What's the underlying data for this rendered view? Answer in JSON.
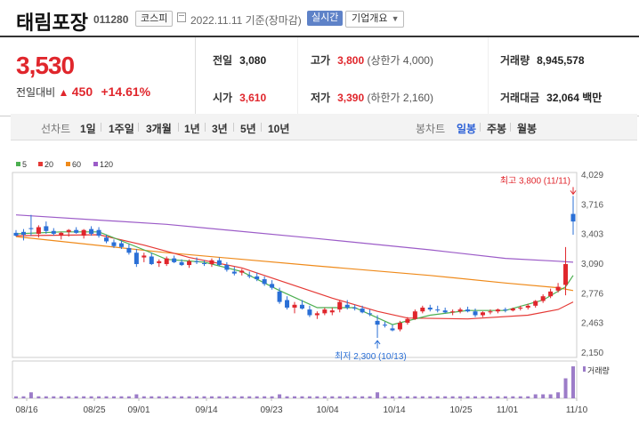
{
  "header": {
    "name": "태림포장",
    "code": "011280",
    "market": "코스피",
    "date": "2022.11.11 기준(장마감)",
    "live": "실시간",
    "company": "기업개요"
  },
  "price": {
    "current": "3,530",
    "change_label": "전일대비",
    "change_icon": "▲",
    "change": "450",
    "change_pct": "+14.61%"
  },
  "stats": {
    "prev": {
      "label": "전일",
      "value": "3,080"
    },
    "high": {
      "label": "고가",
      "value": "3,800",
      "sub": "(상한가 4,000)"
    },
    "volume": {
      "label": "거래량",
      "value": "8,945,578"
    },
    "open": {
      "label": "시가",
      "value": "3,610"
    },
    "low": {
      "label": "저가",
      "value": "3,390",
      "sub": "(하한가 2,160)"
    },
    "amount": {
      "label": "거래대금",
      "value": "32,064",
      "unit": "백만"
    }
  },
  "period": {
    "line_label": "선차트",
    "line_items": [
      "1일",
      "1주일",
      "3개월",
      "1년",
      "3년",
      "5년",
      "10년"
    ],
    "candle_label": "봉차트",
    "candle_items": [
      "일봉",
      "주봉",
      "월봉"
    ],
    "active_candle": "일봉"
  },
  "chart_data": {
    "type": "candlestick",
    "legend": [
      {
        "name": "5",
        "color": "#4caf50"
      },
      {
        "name": "20",
        "color": "#e53935"
      },
      {
        "name": "60",
        "color": "#ef8a1a"
      },
      {
        "name": "120",
        "color": "#9c5cc8"
      }
    ],
    "y_ticks": [
      4029,
      3716,
      3403,
      3090,
      2776,
      2463,
      2150
    ],
    "ylim": [
      2150,
      4029
    ],
    "x_labels": [
      "08/16",
      "08/25",
      "09/01",
      "09/14",
      "09/23",
      "10/04",
      "10/14",
      "10/25",
      "11/01",
      "11/10"
    ],
    "high_annotation": "최고 3,800 (11/11)",
    "low_annotation": "최저 2,300 (10/13)",
    "volume_label": "거래량",
    "candles": [
      [
        3410,
        3440,
        3370,
        3380
      ],
      [
        3420,
        3450,
        3330,
        3390
      ],
      [
        3460,
        3600,
        3380,
        3450
      ],
      [
        3400,
        3490,
        3360,
        3470
      ],
      [
        3480,
        3530,
        3400,
        3430
      ],
      [
        3430,
        3460,
        3380,
        3400
      ],
      [
        3380,
        3420,
        3340,
        3410
      ],
      [
        3420,
        3450,
        3370,
        3440
      ],
      [
        3440,
        3470,
        3400,
        3410
      ],
      [
        3380,
        3450,
        3350,
        3440
      ],
      [
        3450,
        3480,
        3380,
        3400
      ],
      [
        3440,
        3470,
        3360,
        3380
      ],
      [
        3360,
        3390,
        3300,
        3320
      ],
      [
        3310,
        3340,
        3250,
        3270
      ],
      [
        3300,
        3330,
        3240,
        3260
      ],
      [
        3250,
        3290,
        3180,
        3200
      ],
      [
        3200,
        3240,
        3050,
        3080
      ],
      [
        3150,
        3200,
        3100,
        3170
      ],
      [
        3160,
        3200,
        3070,
        3080
      ],
      [
        3090,
        3130,
        3050,
        3110
      ],
      [
        3080,
        3160,
        3060,
        3140
      ],
      [
        3140,
        3170,
        3090,
        3100
      ],
      [
        3100,
        3130,
        3060,
        3070
      ],
      [
        3070,
        3130,
        3040,
        3110
      ],
      [
        3110,
        3150,
        3080,
        3100
      ],
      [
        3090,
        3120,
        3060,
        3080
      ],
      [
        3080,
        3140,
        3050,
        3120
      ],
      [
        3120,
        3150,
        3060,
        3070
      ],
      [
        3070,
        3100,
        3000,
        3020
      ],
      [
        3000,
        3050,
        2960,
        2980
      ],
      [
        2990,
        3030,
        2960,
        3010
      ],
      [
        2960,
        3000,
        2930,
        2950
      ],
      [
        2950,
        2990,
        2900,
        2920
      ],
      [
        2920,
        2950,
        2850,
        2870
      ],
      [
        2870,
        2910,
        2810,
        2830
      ],
      [
        2790,
        2830,
        2660,
        2680
      ],
      [
        2700,
        2740,
        2600,
        2620
      ],
      [
        2620,
        2680,
        2560,
        2650
      ],
      [
        2650,
        2700,
        2600,
        2610
      ],
      [
        2600,
        2640,
        2520,
        2540
      ],
      [
        2540,
        2580,
        2500,
        2560
      ],
      [
        2560,
        2620,
        2540,
        2600
      ],
      [
        2570,
        2620,
        2540,
        2590
      ],
      [
        2600,
        2700,
        2570,
        2680
      ],
      [
        2650,
        2700,
        2600,
        2620
      ],
      [
        2620,
        2650,
        2590,
        2610
      ],
      [
        2610,
        2640,
        2560,
        2570
      ],
      [
        2560,
        2600,
        2530,
        2550
      ],
      [
        2480,
        2540,
        2300,
        2440
      ],
      [
        2440,
        2470,
        2410,
        2430
      ],
      [
        2400,
        2440,
        2370,
        2380
      ],
      [
        2390,
        2480,
        2370,
        2460
      ],
      [
        2460,
        2520,
        2440,
        2500
      ],
      [
        2500,
        2600,
        2490,
        2580
      ],
      [
        2580,
        2640,
        2560,
        2620
      ],
      [
        2620,
        2650,
        2580,
        2600
      ],
      [
        2600,
        2640,
        2570,
        2590
      ],
      [
        2590,
        2620,
        2560,
        2570
      ],
      [
        2570,
        2600,
        2540,
        2580
      ],
      [
        2580,
        2620,
        2560,
        2600
      ],
      [
        2600,
        2630,
        2570,
        2580
      ],
      [
        2580,
        2610,
        2520,
        2540
      ],
      [
        2540,
        2580,
        2520,
        2570
      ],
      [
        2570,
        2600,
        2550,
        2580
      ],
      [
        2580,
        2610,
        2560,
        2600
      ],
      [
        2600,
        2620,
        2570,
        2590
      ],
      [
        2590,
        2620,
        2580,
        2610
      ],
      [
        2610,
        2640,
        2590,
        2620
      ],
      [
        2620,
        2660,
        2600,
        2640
      ],
      [
        2640,
        2700,
        2620,
        2690
      ],
      [
        2690,
        2760,
        2670,
        2740
      ],
      [
        2740,
        2820,
        2720,
        2790
      ],
      [
        2800,
        2880,
        2780,
        2840
      ],
      [
        2860,
        3260,
        2750,
        3080
      ],
      [
        3610,
        3800,
        3390,
        3530
      ]
    ],
    "ma5": [
      [
        0,
        3400
      ],
      [
        6,
        3420
      ],
      [
        11,
        3420
      ],
      [
        17,
        3230
      ],
      [
        20,
        3130
      ],
      [
        25,
        3100
      ],
      [
        30,
        3000
      ],
      [
        35,
        2800
      ],
      [
        40,
        2620
      ],
      [
        45,
        2620
      ],
      [
        50,
        2440
      ],
      [
        55,
        2540
      ],
      [
        60,
        2590
      ],
      [
        65,
        2590
      ],
      [
        70,
        2700
      ],
      [
        73,
        2840
      ],
      [
        74,
        2960
      ]
    ],
    "ma20": [
      [
        0,
        3380
      ],
      [
        11,
        3390
      ],
      [
        17,
        3280
      ],
      [
        23,
        3150
      ],
      [
        30,
        3040
      ],
      [
        36,
        2880
      ],
      [
        42,
        2720
      ],
      [
        48,
        2580
      ],
      [
        52,
        2510
      ],
      [
        60,
        2500
      ],
      [
        68,
        2540
      ],
      [
        72,
        2600
      ],
      [
        74,
        2680
      ]
    ],
    "ma60": [
      [
        0,
        3370
      ],
      [
        20,
        3200
      ],
      [
        40,
        3060
      ],
      [
        55,
        2960
      ],
      [
        65,
        2880
      ],
      [
        72,
        2830
      ],
      [
        74,
        2800
      ]
    ],
    "ma120": [
      [
        0,
        3600
      ],
      [
        20,
        3500
      ],
      [
        40,
        3350
      ],
      [
        55,
        3230
      ],
      [
        65,
        3140
      ],
      [
        72,
        3110
      ],
      [
        74,
        3100
      ]
    ],
    "volumes": [
      1,
      1,
      3,
      1,
      1,
      1,
      1,
      1,
      1,
      1,
      1,
      1,
      1,
      1,
      1,
      1,
      2,
      1,
      1,
      1,
      1,
      1,
      1,
      1,
      1,
      1,
      1,
      1,
      1,
      1,
      1,
      1,
      1,
      1,
      1,
      2,
      1,
      1,
      1,
      1,
      1,
      1,
      1,
      1,
      1,
      1,
      1,
      1,
      3,
      1,
      1,
      1,
      1,
      1,
      1,
      1,
      1,
      1,
      1,
      1,
      1,
      1,
      1,
      1,
      1,
      1,
      1,
      1,
      1,
      2,
      2,
      2,
      3,
      10,
      16
    ]
  }
}
